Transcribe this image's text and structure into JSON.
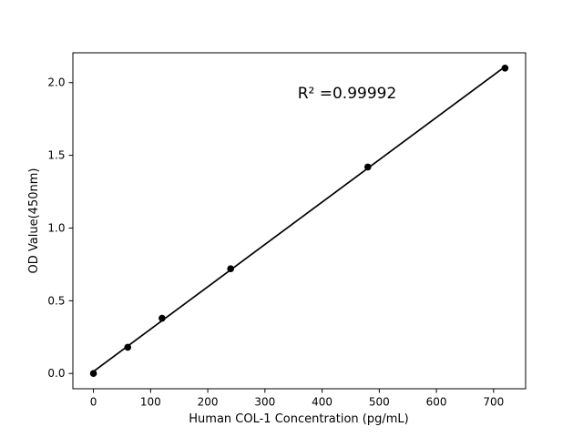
{
  "figure": {
    "background": "#ffffff"
  },
  "chart_data": {
    "type": "scatter",
    "x": [
      0,
      60,
      120,
      240,
      480,
      720
    ],
    "y": [
      0.0,
      0.18,
      0.38,
      0.72,
      1.42,
      2.1
    ],
    "title": "",
    "xlabel": "Human COL-1 Concentration (pg/mL)",
    "ylabel": "OD Value(450nm)",
    "annotation": "R² =0.99992",
    "xticks": [
      0,
      100,
      200,
      300,
      400,
      500,
      600,
      700
    ],
    "yticks": [
      0.0,
      0.5,
      1.0,
      1.5,
      2.0
    ],
    "xlim": [
      -36,
      756
    ],
    "ylim": [
      -0.105,
      2.205
    ],
    "grid": false,
    "legend_position": "none",
    "line_style": "linear-fit-through-points",
    "marker": "filled-circle",
    "colors": {
      "line": "#000000",
      "marker": "#000000",
      "text": "#000000",
      "axes": "#000000",
      "background": "#ffffff"
    }
  }
}
